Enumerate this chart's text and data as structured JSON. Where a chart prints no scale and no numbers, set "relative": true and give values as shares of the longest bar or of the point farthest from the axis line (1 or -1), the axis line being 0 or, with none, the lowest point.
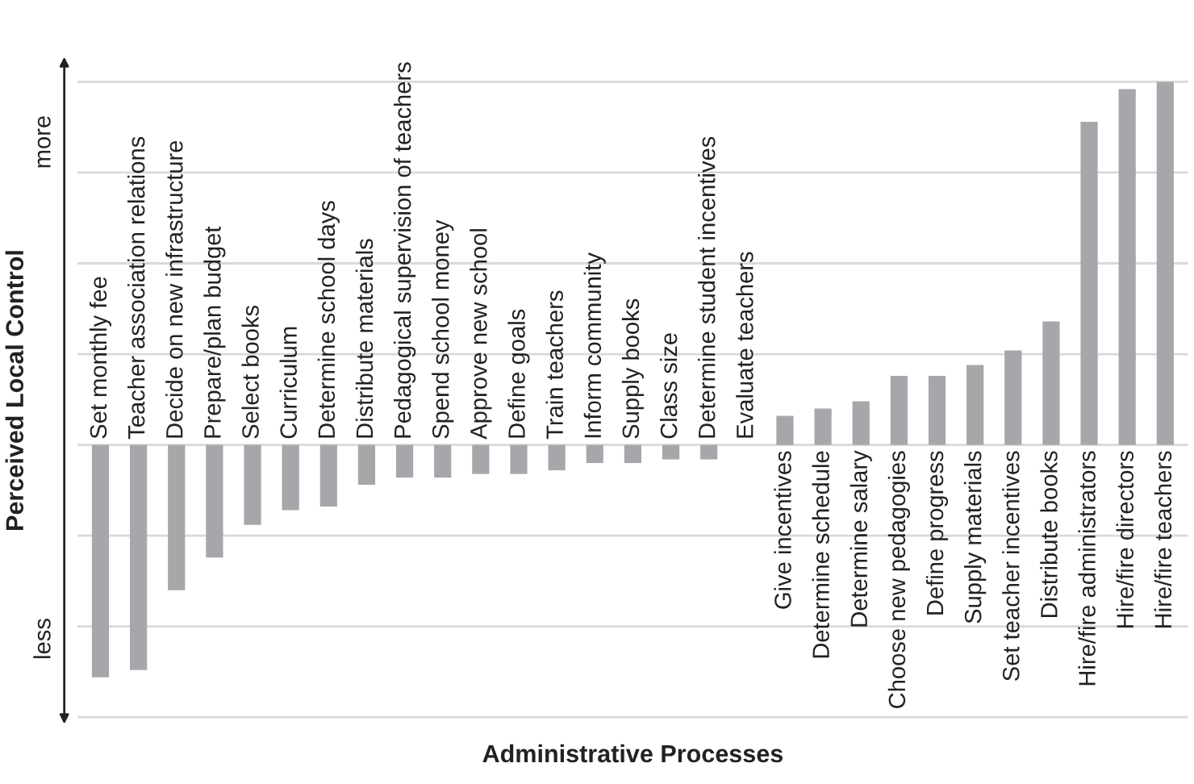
{
  "chart_data": {
    "type": "bar",
    "relative": true,
    "xlabel": "Administrative Processes",
    "ylabel": "Perceived Local Control",
    "annotations": [
      "more",
      "less"
    ],
    "categories": [
      "Set monthly fee",
      "Teacher association relations",
      "Decide on new infrastructure",
      "Prepare/plan budget",
      "Select books",
      "Curriculum",
      "Determine school days",
      "Distribute materials",
      "Pedagogical supervision of teachers",
      "Spend school money",
      "Approve new school",
      "Define goals",
      "Train teachers",
      "Inform community",
      "Supply books",
      "Class size",
      "Determine student incentives",
      "Evaluate teachers",
      "Give incentives",
      "Determine schedule",
      "Determine salary",
      "Choose new pedagogies",
      "Define progress",
      "Supply materials",
      "Set teacher incentives",
      "Distribute books",
      "Hire/fire administrators",
      "Hire/fire directors",
      "Hire/fire teachers"
    ],
    "values": [
      -0.64,
      -0.62,
      -0.4,
      -0.31,
      -0.22,
      -0.18,
      -0.17,
      -0.11,
      -0.09,
      -0.09,
      -0.08,
      -0.08,
      -0.07,
      -0.05,
      -0.05,
      -0.04,
      -0.04,
      0,
      0.08,
      0.1,
      0.12,
      0.19,
      0.19,
      0.22,
      0.26,
      0.34,
      0.89,
      0.98,
      1
    ],
    "color": "#a6a7aa",
    "grid": "y"
  }
}
